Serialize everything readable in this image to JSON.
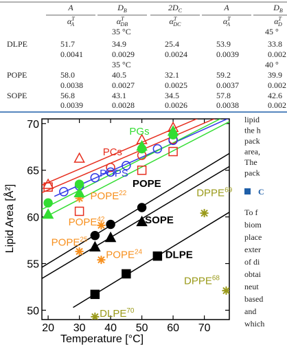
{
  "table": {
    "columns": [
      {
        "main": "A"
      },
      {
        "main": "D",
        "sub": "B"
      },
      {
        "main": "2D",
        "sub": "C"
      },
      {
        "main": "A"
      },
      {
        "main": "D",
        "sub": "B"
      }
    ],
    "subcolumns": [
      {
        "main": "α",
        "sup": "T",
        "sub": "A"
      },
      {
        "main": "α",
        "sup": "T",
        "sub": "DB"
      },
      {
        "main": "α",
        "sup": "T",
        "sub": "DC"
      },
      {
        "main": "α",
        "sup": "T",
        "sub": "A"
      },
      {
        "main": "α",
        "sup": "T",
        "sub": "D"
      }
    ],
    "blocks": [
      {
        "temps": [
          "35 °C",
          "45 °"
        ]
      },
      {
        "lipid": "DLPE",
        "values": [
          "51.7",
          "34.9",
          "25.4",
          "53.9",
          "33.8"
        ],
        "coefs": [
          "0.0041",
          "0.0029",
          "0.0024",
          "0.0039",
          "0.002"
        ]
      },
      {
        "temps": [
          "35 °C",
          "40 °"
        ]
      },
      {
        "lipid": "POPE",
        "values": [
          "58.0",
          "40.5",
          "32.1",
          "59.2",
          "39.9"
        ],
        "coefs": [
          "0.0038",
          "0.0027",
          "0.0025",
          "0.0037",
          "0.002"
        ]
      },
      {
        "lipid": "SOPE",
        "values": [
          "56.8",
          "43.1",
          "34.5",
          "57.8",
          "42.6"
        ],
        "coefs": [
          "0.0039",
          "0.0028",
          "0.0026",
          "0.0038",
          "0.002"
        ]
      }
    ]
  },
  "chart_data": {
    "type": "scatter",
    "xlabel": "Temperature [°C]",
    "ylabel": "Lipid Area [Å²]",
    "xlim": [
      18,
      78
    ],
    "ylim": [
      49,
      70.5
    ],
    "xticks": [
      20,
      30,
      40,
      50,
      60,
      70
    ],
    "yticks": [
      50,
      55,
      60,
      65,
      70
    ],
    "series": [
      {
        "marker": "line",
        "color": "#000000",
        "x": [
          28,
          78
        ],
        "values": [
          50.3,
          60.5
        ]
      },
      {
        "marker": "line",
        "color": "#000000",
        "x": [
          18,
          78
        ],
        "values": [
          53.4,
          65.4
        ]
      },
      {
        "marker": "line",
        "color": "#000000",
        "x": [
          18,
          78
        ],
        "values": [
          54.6,
          66.8
        ]
      },
      {
        "marker": "line",
        "color": "#e62e1e",
        "x": [
          18,
          78
        ],
        "values": [
          62.6,
          71.2
        ]
      },
      {
        "marker": "line",
        "color": "#e62e1e",
        "x": [
          18,
          78
        ],
        "values": [
          63.4,
          72.0
        ]
      },
      {
        "marker": "line",
        "color": "#2f37e6",
        "x": [
          22,
          78
        ],
        "values": [
          62.2,
          70.6
        ]
      },
      {
        "marker": "line",
        "color": "#33dd33",
        "x": [
          18,
          78
        ],
        "values": [
          59.8,
          70.2
        ]
      },
      {
        "marker": "line",
        "color": "#33dd33",
        "x": [
          18,
          78
        ],
        "values": [
          60.8,
          71.0
        ]
      },
      {
        "marker": "square",
        "filled": true,
        "color": "#000000",
        "x": [
          35,
          45,
          55
        ],
        "values": [
          51.7,
          53.9,
          55.8
        ]
      },
      {
        "marker": "circle",
        "filled": true,
        "color": "#000000",
        "x": [
          35,
          40,
          50
        ],
        "values": [
          58.0,
          59.2,
          61.0
        ]
      },
      {
        "marker": "triangle",
        "filled": true,
        "color": "#000000",
        "x": [
          35,
          40,
          50
        ],
        "values": [
          56.8,
          57.8,
          59.5
        ]
      },
      {
        "marker": "asterisk",
        "color": "#9a9a1a",
        "x": [
          35,
          70,
          77
        ],
        "values": [
          49.3,
          60.4,
          52.1
        ]
      },
      {
        "marker": "asterisk",
        "color": "#f7901e",
        "x": [
          30,
          37,
          30,
          37
        ],
        "values": [
          62.0,
          59.1,
          56.3,
          55.4
        ]
      },
      {
        "marker": "triangle",
        "filled": false,
        "color": "#e62e1e",
        "x": [
          20,
          30,
          50,
          60
        ],
        "values": [
          63.5,
          66.3,
          68.3,
          69.6
        ]
      },
      {
        "marker": "square",
        "filled": false,
        "color": "#e62e1e",
        "x": [
          20,
          30,
          50,
          60
        ],
        "values": [
          63.2,
          60.6,
          65.0,
          67.0
        ]
      },
      {
        "marker": "circle",
        "filled": false,
        "color": "#e62e1e",
        "x": [
          40,
          50,
          60
        ],
        "values": [
          65.3,
          66.6,
          68.3
        ]
      },
      {
        "marker": "circle",
        "filled": false,
        "color": "#2f37e6",
        "x": [
          25,
          30,
          35,
          40,
          45,
          55,
          60
        ],
        "values": [
          62.7,
          63.3,
          64.2,
          64.8,
          65.5,
          67.3,
          68.2
        ]
      },
      {
        "marker": "triangle",
        "filled": true,
        "color": "#33dd33",
        "x": [
          20,
          30,
          50,
          60
        ],
        "values": [
          60.3,
          62.6,
          67.6,
          69.2
        ]
      },
      {
        "marker": "circle",
        "filled": true,
        "color": "#33dd33",
        "x": [
          20,
          30,
          50,
          60
        ],
        "values": [
          61.5,
          63.5,
          67.3,
          68.8
        ]
      }
    ],
    "annotations": [
      {
        "text": "PCs",
        "color": "#e62e1e"
      },
      {
        "text": "PGs",
        "color": "#33dd33"
      },
      {
        "text": "POPS",
        "color": "#2f37e6"
      },
      {
        "text": "POPE",
        "color": "#000000"
      },
      {
        "text": "SOPE",
        "color": "#000000"
      },
      {
        "text": "DLPE",
        "color": "#000000"
      },
      {
        "text": "DPPE",
        "sup": "69",
        "color": "#9a9a1a"
      },
      {
        "text": "POPE",
        "sup": "22",
        "color": "#f7901e"
      },
      {
        "text": "POPE",
        "sup": "42",
        "color": "#f7901e"
      },
      {
        "text": "POPE",
        "sup": "25",
        "color": "#f7901e"
      },
      {
        "text": "POPE",
        "sup": "24",
        "color": "#f7901e"
      },
      {
        "text": "DLPE",
        "sup": "70",
        "color": "#9a9a1a"
      },
      {
        "text": "DPPE",
        "sup": "68",
        "color": "#9a9a1a"
      }
    ]
  },
  "body_text": {
    "lines_before": [
      "lipid",
      "the h",
      "pack",
      "area,",
      "The",
      "pack"
    ],
    "heading": "C",
    "lines_after": [
      "To f",
      "biom",
      "place",
      "exter",
      "of di",
      "obtai",
      "neut",
      "based",
      "and",
      "which"
    ]
  }
}
